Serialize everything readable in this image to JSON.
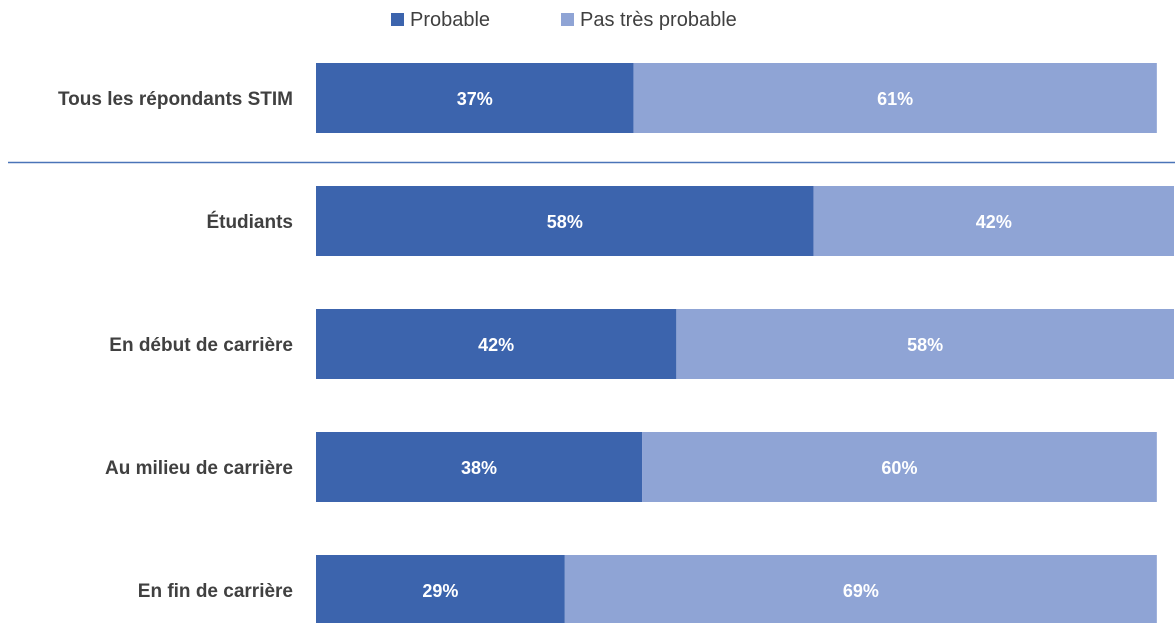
{
  "chart_data": {
    "type": "bar",
    "orientation": "horizontal",
    "stacked": true,
    "categories": [
      "Tous les répondants STIM",
      "Étudiants",
      "En début de carrière",
      "Au milieu de carrière",
      "En fin de carrière"
    ],
    "series": [
      {
        "name": "Probable",
        "color": "#3c64ad",
        "values": [
          37,
          58,
          42,
          38,
          29
        ],
        "labels": [
          "37%",
          "58%",
          "42%",
          "38%",
          "29%"
        ]
      },
      {
        "name": "Pas très probable",
        "color": "#8fa4d5",
        "values": [
          61,
          42,
          58,
          60,
          69
        ],
        "labels": [
          "61%",
          "42%",
          "58%",
          "60%",
          "69%"
        ]
      }
    ],
    "xlim": [
      0,
      100
    ],
    "unit": "%",
    "grid": false,
    "legend_position": "top-center",
    "separator_after_first_category": true,
    "separator_color": "#4a74b8"
  }
}
